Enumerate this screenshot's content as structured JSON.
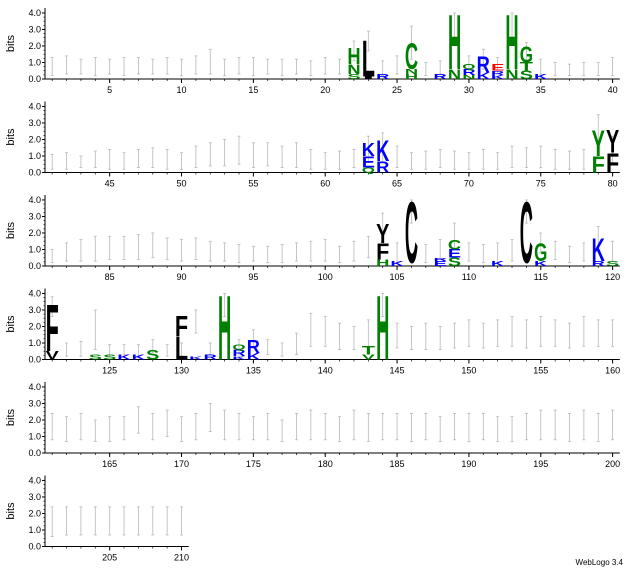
{
  "footer": "WebLogo 3.4",
  "chart_data": {
    "type": "sequence-logo",
    "title": "",
    "ylabel": "bits",
    "ylim": [
      0,
      4.3
    ],
    "y_ticks": [
      "0.0",
      "1.0",
      "2.0",
      "3.0",
      "4.0"
    ],
    "positions_per_line": 40,
    "total_positions": 210,
    "x_tick_labels": [
      5,
      10,
      15,
      20,
      25,
      30,
      35,
      40,
      45,
      50,
      55,
      60,
      65,
      70,
      75,
      80,
      85,
      90,
      95,
      100,
      105,
      110,
      115,
      120,
      125,
      130,
      135,
      140,
      145,
      150,
      155,
      160,
      165,
      170,
      175,
      180,
      185,
      190,
      195,
      200,
      205,
      210
    ],
    "colors": {
      "hydrophobic": "#000000",
      "polar": "#008000",
      "basic": "#0000ff",
      "acidic": "#ff0000",
      "errorbar": "#b8b8b8"
    },
    "error_bars": [
      [
        1,
        0.2,
        1.3
      ],
      [
        2,
        0.3,
        1.4
      ],
      [
        3,
        0.3,
        1.2
      ],
      [
        4,
        0.2,
        1.3
      ],
      [
        5,
        0.3,
        1.2
      ],
      [
        6,
        0.2,
        1.3
      ],
      [
        7,
        0.3,
        1.3
      ],
      [
        8,
        0.3,
        1.2
      ],
      [
        9,
        0.3,
        1.3
      ],
      [
        10,
        0.2,
        1.2
      ],
      [
        11,
        0.3,
        1.4
      ],
      [
        12,
        0.3,
        1.8
      ],
      [
        13,
        0.2,
        1.2
      ],
      [
        14,
        0.3,
        1.3
      ],
      [
        15,
        0.2,
        1.3
      ],
      [
        16,
        0.3,
        1.2
      ],
      [
        17,
        0.2,
        1.2
      ],
      [
        18,
        0.3,
        1.2
      ],
      [
        19,
        0.2,
        1.1
      ],
      [
        20,
        0.3,
        1.3
      ],
      [
        21,
        0.3,
        1.2
      ],
      [
        22,
        1.1,
        2.3
      ],
      [
        23,
        1.7,
        2.9
      ],
      [
        24,
        0.2,
        1.1
      ],
      [
        25,
        0.3,
        1.4
      ],
      [
        26,
        1.2,
        3.2
      ],
      [
        27,
        0.2,
        1.0
      ],
      [
        28,
        0.3,
        1.1
      ],
      [
        29,
        2.5,
        4.0
      ],
      [
        30,
        0.4,
        1.4
      ],
      [
        31,
        0.6,
        1.8
      ],
      [
        32,
        0.3,
        1.3
      ],
      [
        33,
        2.5,
        4.0
      ],
      [
        34,
        0.7,
        2.2
      ],
      [
        35,
        0.3,
        1.2
      ],
      [
        36,
        0.2,
        1.0
      ],
      [
        37,
        0.2,
        0.9
      ],
      [
        38,
        0.2,
        1.0
      ],
      [
        39,
        0.2,
        1.0
      ],
      [
        40,
        0.2,
        1.3
      ],
      [
        41,
        0.2,
        1.1
      ],
      [
        42,
        0.2,
        1.2
      ],
      [
        43,
        0.3,
        1.0
      ],
      [
        44,
        0.3,
        1.3
      ],
      [
        45,
        0.2,
        1.4
      ],
      [
        46,
        0.2,
        1.2
      ],
      [
        47,
        0.3,
        1.4
      ],
      [
        48,
        0.3,
        1.5
      ],
      [
        49,
        0.2,
        1.4
      ],
      [
        50,
        0.2,
        1.2
      ],
      [
        51,
        0.3,
        1.6
      ],
      [
        52,
        0.4,
        1.8
      ],
      [
        53,
        0.4,
        2.0
      ],
      [
        54,
        0.5,
        2.2
      ],
      [
        55,
        0.3,
        1.8
      ],
      [
        56,
        0.4,
        1.8
      ],
      [
        57,
        0.3,
        1.6
      ],
      [
        58,
        0.3,
        1.8
      ],
      [
        59,
        0.2,
        1.4
      ],
      [
        60,
        0.2,
        1.2
      ],
      [
        61,
        0.2,
        1.3
      ],
      [
        62,
        0.3,
        1.4
      ],
      [
        63,
        0.6,
        2.2
      ],
      [
        64,
        0.6,
        2.4
      ],
      [
        65,
        0.3,
        1.6
      ],
      [
        66,
        0.2,
        1.2
      ],
      [
        67,
        0.2,
        1.3
      ],
      [
        68,
        0.3,
        1.4
      ],
      [
        69,
        0.2,
        1.3
      ],
      [
        70,
        0.2,
        1.2
      ],
      [
        71,
        0.2,
        1.4
      ],
      [
        72,
        0.2,
        1.2
      ],
      [
        73,
        0.3,
        1.6
      ],
      [
        74,
        0.3,
        1.5
      ],
      [
        75,
        0.3,
        1.6
      ],
      [
        76,
        0.2,
        1.4
      ],
      [
        77,
        0.2,
        1.3
      ],
      [
        78,
        0.2,
        1.4
      ],
      [
        79,
        1.5,
        3.5
      ],
      [
        80,
        0.6,
        2.2
      ],
      [
        81,
        0.2,
        1.0
      ],
      [
        82,
        0.3,
        1.4
      ],
      [
        83,
        0.3,
        1.6
      ],
      [
        84,
        0.3,
        1.8
      ],
      [
        85,
        0.4,
        1.8
      ],
      [
        86,
        0.4,
        1.8
      ],
      [
        87,
        0.4,
        1.9
      ],
      [
        88,
        0.5,
        2.0
      ],
      [
        89,
        0.4,
        1.7
      ],
      [
        90,
        0.3,
        1.6
      ],
      [
        91,
        0.4,
        1.7
      ],
      [
        92,
        0.3,
        1.5
      ],
      [
        93,
        0.3,
        1.4
      ],
      [
        94,
        0.2,
        1.3
      ],
      [
        95,
        0.3,
        1.2
      ],
      [
        96,
        0.2,
        1.2
      ],
      [
        97,
        0.2,
        1.3
      ],
      [
        98,
        0.3,
        1.4
      ],
      [
        99,
        0.3,
        1.5
      ],
      [
        100,
        0.3,
        1.6
      ],
      [
        101,
        0.2,
        1.2
      ],
      [
        102,
        0.3,
        1.5
      ],
      [
        103,
        0.5,
        1.8
      ],
      [
        104,
        1.5,
        3.2
      ],
      [
        105,
        0.2,
        1.4
      ],
      [
        106,
        2.6,
        4.0
      ],
      [
        107,
        0.2,
        1.3
      ],
      [
        108,
        0.4,
        1.6
      ],
      [
        109,
        1.0,
        2.6
      ],
      [
        110,
        0.3,
        1.4
      ],
      [
        111,
        0.2,
        1.3
      ],
      [
        112,
        0.2,
        1.4
      ],
      [
        113,
        0.3,
        1.6
      ],
      [
        114,
        2.6,
        4.0
      ],
      [
        115,
        0.8,
        2.0
      ],
      [
        116,
        0.4,
        1.5
      ],
      [
        117,
        0.2,
        1.2
      ],
      [
        118,
        0.3,
        1.4
      ],
      [
        119,
        1.0,
        2.4
      ],
      [
        120,
        0.3,
        1.5
      ],
      [
        121,
        2.6,
        3.8
      ],
      [
        122,
        0.2,
        1.0
      ],
      [
        123,
        0.2,
        1.1
      ],
      [
        124,
        0.6,
        3.0
      ],
      [
        125,
        0.2,
        0.9
      ],
      [
        126,
        0.3,
        0.9
      ],
      [
        127,
        0.2,
        0.9
      ],
      [
        128,
        0.4,
        1.2
      ],
      [
        129,
        0.2,
        0.9
      ],
      [
        130,
        0.2,
        1.0
      ],
      [
        131,
        1.6,
        3.0
      ],
      [
        132,
        0.3,
        1.0
      ],
      [
        133,
        2.6,
        4.0
      ],
      [
        134,
        0.2,
        1.2
      ],
      [
        135,
        0.7,
        1.8
      ],
      [
        136,
        0.3,
        1.2
      ],
      [
        137,
        0.2,
        1.0
      ],
      [
        138,
        0.3,
        1.6
      ],
      [
        139,
        0.8,
        2.8
      ],
      [
        140,
        0.8,
        2.6
      ],
      [
        141,
        0.6,
        2.2
      ],
      [
        142,
        0.6,
        2.0
      ],
      [
        143,
        0.8,
        2.4
      ],
      [
        144,
        2.6,
        4.0
      ],
      [
        145,
        0.7,
        2.2
      ],
      [
        146,
        0.6,
        2.0
      ],
      [
        147,
        0.6,
        2.2
      ],
      [
        148,
        0.6,
        2.0
      ],
      [
        149,
        0.7,
        2.2
      ],
      [
        150,
        0.8,
        2.4
      ],
      [
        151,
        0.7,
        2.2
      ],
      [
        152,
        0.8,
        2.4
      ],
      [
        153,
        0.8,
        2.6
      ],
      [
        154,
        0.7,
        2.4
      ],
      [
        155,
        0.8,
        2.6
      ],
      [
        156,
        0.8,
        2.4
      ],
      [
        157,
        0.7,
        2.2
      ],
      [
        158,
        0.8,
        2.6
      ],
      [
        159,
        0.8,
        2.4
      ],
      [
        160,
        0.8,
        2.4
      ],
      [
        161,
        0.8,
        2.4
      ],
      [
        162,
        0.7,
        2.2
      ],
      [
        163,
        0.8,
        2.4
      ],
      [
        164,
        0.7,
        2.0
      ],
      [
        165,
        0.7,
        2.2
      ],
      [
        166,
        0.8,
        2.2
      ],
      [
        167,
        1.2,
        2.8
      ],
      [
        168,
        0.8,
        2.4
      ],
      [
        169,
        1.0,
        2.6
      ],
      [
        170,
        0.7,
        2.2
      ],
      [
        171,
        0.8,
        2.4
      ],
      [
        172,
        1.3,
        3.0
      ],
      [
        173,
        0.8,
        2.6
      ],
      [
        174,
        0.8,
        2.4
      ],
      [
        175,
        0.8,
        2.2
      ],
      [
        176,
        0.8,
        2.4
      ],
      [
        177,
        0.7,
        2.0
      ],
      [
        178,
        0.8,
        2.4
      ],
      [
        179,
        0.8,
        2.6
      ],
      [
        180,
        0.8,
        2.4
      ],
      [
        181,
        0.7,
        2.2
      ],
      [
        182,
        0.8,
        2.6
      ],
      [
        183,
        0.7,
        2.4
      ],
      [
        184,
        0.8,
        2.4
      ],
      [
        185,
        0.8,
        2.4
      ],
      [
        186,
        0.7,
        2.4
      ],
      [
        187,
        0.8,
        2.4
      ],
      [
        188,
        0.7,
        2.2
      ],
      [
        189,
        0.8,
        2.4
      ],
      [
        190,
        0.7,
        2.4
      ],
      [
        191,
        0.8,
        2.4
      ],
      [
        192,
        0.7,
        2.2
      ],
      [
        193,
        0.7,
        2.2
      ],
      [
        194,
        0.8,
        2.4
      ],
      [
        195,
        0.8,
        2.6
      ],
      [
        196,
        0.8,
        2.6
      ],
      [
        197,
        0.7,
        2.4
      ],
      [
        198,
        0.8,
        2.6
      ],
      [
        199,
        0.7,
        2.4
      ],
      [
        200,
        0.8,
        2.6
      ],
      [
        201,
        0.6,
        2.4
      ],
      [
        202,
        0.7,
        2.4
      ],
      [
        203,
        0.7,
        2.4
      ],
      [
        204,
        0.7,
        2.4
      ],
      [
        205,
        0.7,
        2.4
      ],
      [
        206,
        0.7,
        2.4
      ],
      [
        207,
        0.7,
        2.4
      ],
      [
        208,
        0.7,
        2.4
      ],
      [
        209,
        0.7,
        2.4
      ],
      [
        210,
        0.7,
        2.4
      ]
    ],
    "letters": [
      [
        22,
        "S",
        0.0,
        0.3,
        "#008000"
      ],
      [
        22,
        "N",
        0.3,
        0.9,
        "#008000"
      ],
      [
        22,
        "H",
        0.9,
        1.9,
        "#008000"
      ],
      [
        23,
        "I",
        0.0,
        0.15,
        "#000000"
      ],
      [
        23,
        "L",
        0.15,
        2.4,
        "#000000"
      ],
      [
        24,
        "R",
        0.0,
        0.3,
        "#0000ff"
      ],
      [
        26,
        "H",
        0.0,
        0.3,
        "#008000"
      ],
      [
        26,
        "N",
        0.3,
        0.6,
        "#008000"
      ],
      [
        26,
        "C",
        0.6,
        2.2,
        "#008000"
      ],
      [
        28,
        "R",
        0.0,
        0.3,
        "#0000ff"
      ],
      [
        29,
        "N",
        0.0,
        0.6,
        "#008000"
      ],
      [
        29,
        "H",
        0.6,
        4.0,
        "#008000"
      ],
      [
        30,
        "N",
        0.0,
        0.25,
        "#008000"
      ],
      [
        30,
        "R",
        0.25,
        0.6,
        "#0000ff"
      ],
      [
        30,
        "Q",
        0.6,
        0.9,
        "#008000"
      ],
      [
        31,
        "K",
        0.0,
        0.4,
        "#0000ff"
      ],
      [
        31,
        "R",
        0.4,
        1.4,
        "#0000ff"
      ],
      [
        32,
        "K",
        0.0,
        0.25,
        "#0000ff"
      ],
      [
        32,
        "R",
        0.25,
        0.5,
        "#0000ff"
      ],
      [
        32,
        "E",
        0.5,
        0.9,
        "#ff0000"
      ],
      [
        33,
        "N",
        0.0,
        0.6,
        "#008000"
      ],
      [
        33,
        "H",
        0.6,
        4.0,
        "#008000"
      ],
      [
        34,
        "S",
        0.0,
        0.5,
        "#008000"
      ],
      [
        34,
        "T",
        0.5,
        1.0,
        "#008000"
      ],
      [
        34,
        "G",
        1.0,
        2.0,
        "#008000"
      ],
      [
        35,
        "K",
        0.0,
        0.3,
        "#0000ff"
      ],
      [
        63,
        "Q",
        0.0,
        0.3,
        "#008000"
      ],
      [
        63,
        "E",
        0.3,
        1.0,
        "#0000ff"
      ],
      [
        63,
        "K",
        1.0,
        1.8,
        "#0000ff"
      ],
      [
        64,
        "R",
        0.0,
        0.7,
        "#0000ff"
      ],
      [
        64,
        "K",
        0.7,
        2.0,
        "#0000ff"
      ],
      [
        79,
        "F",
        0.0,
        1.0,
        "#008000"
      ],
      [
        79,
        "Y",
        1.0,
        2.6,
        "#008000"
      ],
      [
        80,
        "F",
        0.0,
        1.2,
        "#000000"
      ],
      [
        80,
        "Y",
        1.2,
        2.6,
        "#000000"
      ],
      [
        104,
        "H",
        0.0,
        0.4,
        "#008000"
      ],
      [
        104,
        "F",
        0.4,
        1.4,
        "#000000"
      ],
      [
        104,
        "Y",
        1.4,
        2.6,
        "#000000"
      ],
      [
        105,
        "K",
        0.0,
        0.3,
        "#0000ff"
      ],
      [
        106,
        "C",
        0.2,
        4.0,
        "#000000"
      ],
      [
        108,
        "E",
        0.0,
        0.3,
        "#0000ff"
      ],
      [
        108,
        "R",
        0.3,
        0.5,
        "#0000ff"
      ],
      [
        109,
        "S",
        0.0,
        0.5,
        "#008000"
      ],
      [
        109,
        "E",
        0.5,
        1.0,
        "#0000ff"
      ],
      [
        109,
        "C",
        1.0,
        1.6,
        "#008000"
      ],
      [
        112,
        "K",
        0.0,
        0.3,
        "#0000ff"
      ],
      [
        114,
        "C",
        0.2,
        4.0,
        "#000000"
      ],
      [
        115,
        "K",
        0.0,
        0.3,
        "#0000ff"
      ],
      [
        115,
        "G",
        0.3,
        1.4,
        "#008000"
      ],
      [
        119,
        "R",
        0.0,
        0.3,
        "#0000ff"
      ],
      [
        119,
        "K",
        0.3,
        1.7,
        "#0000ff"
      ],
      [
        120,
        "S",
        0.0,
        0.3,
        "#008000"
      ],
      [
        121,
        "V",
        0.0,
        0.5,
        "#000000"
      ],
      [
        121,
        "F",
        0.5,
        3.4,
        "#000000"
      ],
      [
        124,
        "S",
        0.0,
        0.3,
        "#008000"
      ],
      [
        125,
        "S",
        0.0,
        0.3,
        "#008000"
      ],
      [
        126,
        "K",
        0.0,
        0.3,
        "#0000ff"
      ],
      [
        127,
        "K",
        0.0,
        0.3,
        "#0000ff"
      ],
      [
        128,
        "S",
        0.0,
        0.6,
        "#008000"
      ],
      [
        130,
        "L",
        0.0,
        1.4,
        "#000000"
      ],
      [
        130,
        "F",
        1.4,
        2.7,
        "#000000"
      ],
      [
        131,
        "K",
        0.0,
        0.2,
        "#0000ff"
      ],
      [
        132,
        "R",
        0.0,
        0.3,
        "#0000ff"
      ],
      [
        133,
        "H",
        0.0,
        4.0,
        "#008000"
      ],
      [
        134,
        "K",
        0.0,
        0.2,
        "#0000ff"
      ],
      [
        134,
        "R",
        0.2,
        0.6,
        "#0000ff"
      ],
      [
        134,
        "Q",
        0.6,
        0.9,
        "#008000"
      ],
      [
        135,
        "K",
        0.0,
        0.4,
        "#0000ff"
      ],
      [
        135,
        "R",
        0.4,
        1.2,
        "#0000ff"
      ],
      [
        143,
        "V",
        0.0,
        0.3,
        "#008000"
      ],
      [
        143,
        "T",
        0.3,
        0.8,
        "#008000"
      ],
      [
        144,
        "H",
        0.0,
        4.0,
        "#008000"
      ]
    ]
  }
}
